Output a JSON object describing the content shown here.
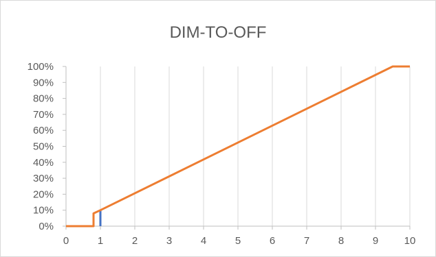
{
  "chart_data": {
    "type": "line",
    "title": "DIM-TO-OFF",
    "xlabel": "",
    "ylabel": "",
    "xlim": [
      0,
      10
    ],
    "ylim": [
      0,
      100
    ],
    "x_ticks": [
      "0",
      "1",
      "2",
      "3",
      "4",
      "5",
      "6",
      "7",
      "8",
      "9",
      "10"
    ],
    "y_ticks": [
      "0%",
      "10%",
      "20%",
      "30%",
      "40%",
      "50%",
      "60%",
      "70%",
      "80%",
      "90%",
      "100%"
    ],
    "grid": "vertical",
    "legend": "none",
    "series": [
      {
        "color": "#4472c4",
        "points": [
          [
            1,
            0
          ],
          [
            1,
            10
          ]
        ]
      },
      {
        "color": "#ed7d31",
        "points": [
          [
            0,
            0
          ],
          [
            0.8,
            0
          ],
          [
            0.8,
            8
          ],
          [
            1,
            10
          ],
          [
            9.5,
            100
          ],
          [
            10,
            100
          ]
        ]
      }
    ],
    "colors": {
      "grid": "#d9d9d9",
      "axis": "#bfbfbf",
      "text": "#595959"
    }
  }
}
